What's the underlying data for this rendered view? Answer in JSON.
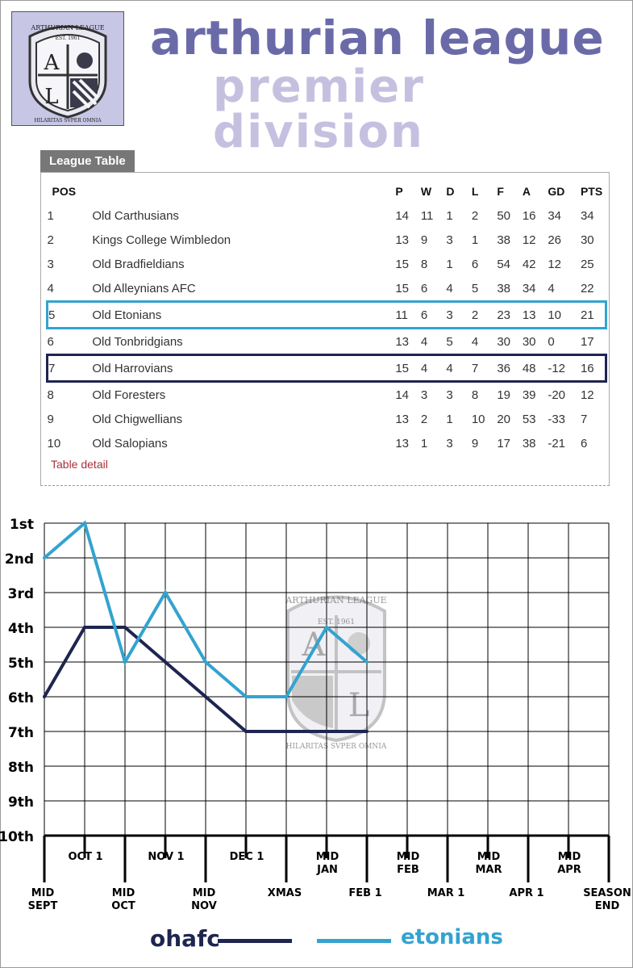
{
  "header": {
    "logo_text_top": "ARTHURIAN LEAGUE",
    "logo_est": "EST. 1961",
    "logo_letter_a": "A",
    "logo_letter_l": "L",
    "logo_motto": "HILARITAS SVPER OMNIA",
    "title": "arthurian league",
    "subtitle": "premier division"
  },
  "league_table": {
    "tab_label": "League Table",
    "columns": [
      "POS",
      "",
      "P",
      "W",
      "D",
      "L",
      "F",
      "A",
      "GD",
      "PTS"
    ],
    "rows": [
      [
        "1",
        "Old Carthusians",
        "14",
        "11",
        "1",
        "2",
        "50",
        "16",
        "34",
        "34"
      ],
      [
        "2",
        "Kings College Wimbledon",
        "13",
        "9",
        "3",
        "1",
        "38",
        "12",
        "26",
        "30"
      ],
      [
        "3",
        "Old Bradfieldians",
        "15",
        "8",
        "1",
        "6",
        "54",
        "42",
        "12",
        "25"
      ],
      [
        "4",
        "Old Alleynians AFC",
        "15",
        "6",
        "4",
        "5",
        "38",
        "34",
        "4",
        "22"
      ],
      [
        "5",
        "Old Etonians",
        "11",
        "6",
        "3",
        "2",
        "23",
        "13",
        "10",
        "21"
      ],
      [
        "6",
        "Old Tonbridgians",
        "13",
        "4",
        "5",
        "4",
        "30",
        "30",
        "0",
        "17"
      ],
      [
        "7",
        "Old Harrovians",
        "15",
        "4",
        "4",
        "7",
        "36",
        "48",
        "-12",
        "16"
      ],
      [
        "8",
        "Old Foresters",
        "14",
        "3",
        "3",
        "8",
        "19",
        "39",
        "-20",
        "12"
      ],
      [
        "9",
        "Old Chigwellians",
        "13",
        "2",
        "1",
        "10",
        "20",
        "53",
        "-33",
        "7"
      ],
      [
        "10",
        "Old Salopians",
        "13",
        "1",
        "3",
        "9",
        "17",
        "38",
        "-21",
        "6"
      ]
    ],
    "detail_link": "Table detail"
  },
  "chart_data": {
    "type": "line",
    "title": "",
    "y_labels": [
      "1st",
      "2nd",
      "3rd",
      "4th",
      "5th",
      "6th",
      "7th",
      "8th",
      "9th",
      "10th"
    ],
    "ylim": [
      1,
      10
    ],
    "y_inverted": true,
    "x_labels_upper": [
      "OCT 1",
      "NOV 1",
      "DEC 1",
      "MID JAN",
      "MID FEB",
      "MID MAR",
      "MID APR"
    ],
    "x_labels_lower": [
      "MID SEPT",
      "MID OCT",
      "MID NOV",
      "XMAS",
      "FEB 1",
      "MAR 1",
      "APR 1",
      "SEASON END"
    ],
    "x_points": [
      "MID SEPT",
      "OCT 1",
      "MID OCT",
      "NOV 1",
      "MID NOV",
      "DEC 1",
      "XMAS",
      "MID JAN",
      "FEB 1",
      "MID FEB",
      "MAR 1",
      "MID MAR",
      "APR 1",
      "MID APR",
      "SEASON END"
    ],
    "grid": true,
    "series": [
      {
        "name": "ohafc",
        "color": "#1f2550",
        "values": [
          6,
          4,
          4,
          5,
          6,
          7,
          7,
          7,
          7
        ]
      },
      {
        "name": "etonians",
        "color": "#33a3d0",
        "values": [
          2,
          1,
          5,
          3,
          5,
          6,
          6,
          4,
          5
        ]
      }
    ],
    "watermark": "logo"
  },
  "legend": {
    "ohafc": "ohafc",
    "etonians": "etonians"
  }
}
